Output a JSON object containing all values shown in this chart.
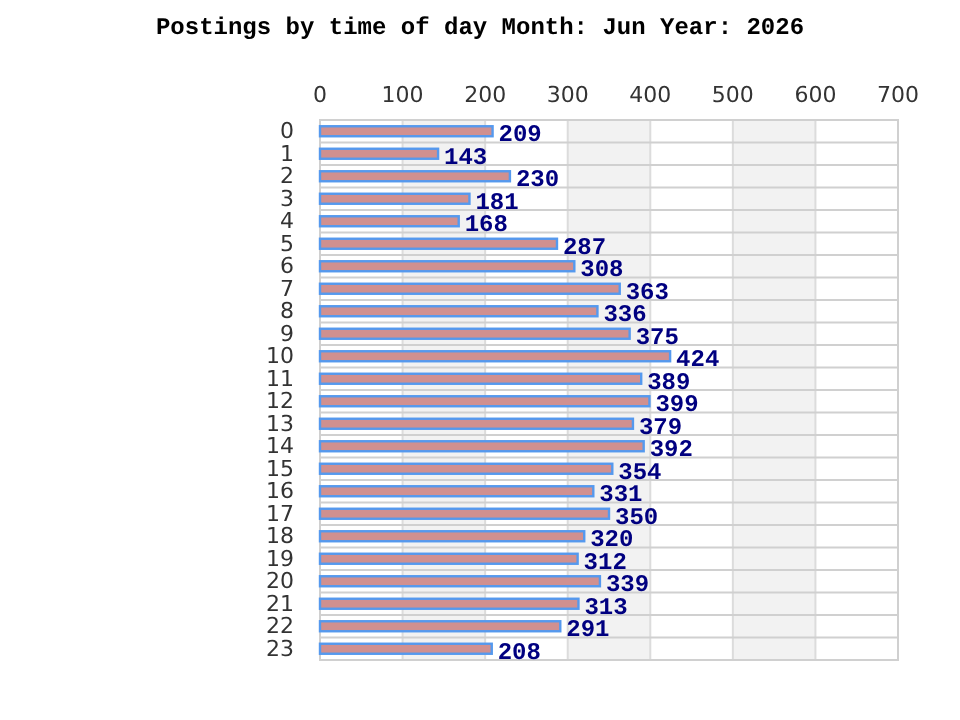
{
  "chart_data": {
    "type": "bar",
    "orientation": "horizontal",
    "title": "Postings by time of day Month: Jun   Year: 2026",
    "categories": [
      "0",
      "1",
      "2",
      "3",
      "4",
      "5",
      "6",
      "7",
      "8",
      "9",
      "10",
      "11",
      "12",
      "13",
      "14",
      "15",
      "16",
      "17",
      "18",
      "19",
      "20",
      "21",
      "22",
      "23"
    ],
    "series": [
      {
        "color": "#d09090",
        "values": [
          209,
          143,
          230,
          181,
          168,
          287,
          308,
          363,
          336,
          375,
          424,
          389,
          399,
          379,
          392,
          354,
          331,
          350,
          320,
          312,
          339,
          313,
          291,
          208
        ]
      }
    ],
    "xlim": [
      0,
      700
    ],
    "xticks": [
      0,
      100,
      200,
      300,
      400,
      500,
      600,
      700
    ],
    "grid": true,
    "data_labels": true
  }
}
